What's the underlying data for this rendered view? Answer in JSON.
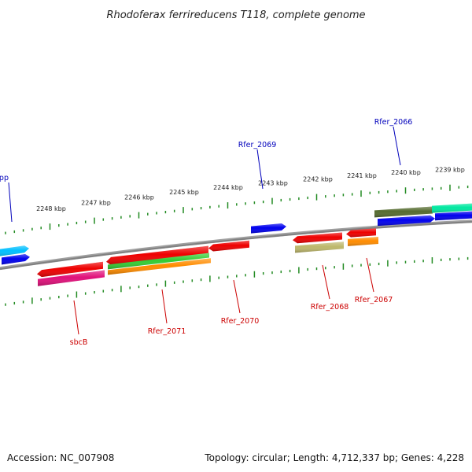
{
  "title": "Rhodoferax ferrireducens T118, complete genome",
  "accession": "Accession: NC_007908",
  "topology": "Topology: circular; Length: 4,712,337 bp; Genes: 4,228",
  "colors": {
    "forward_label": "#0000bb",
    "reverse_label": "#cc0000",
    "tick": "#228b22",
    "backbone": "#808080"
  },
  "scale_labels": [
    "2248 kbp",
    "2247 kbp",
    "2246 kbp",
    "2245 kbp",
    "2244 kbp",
    "2243 kbp",
    "2242 kbp",
    "2241 kbp",
    "2240 kbp",
    "2239 kbp"
  ],
  "labeled_genes": [
    {
      "name": "upp",
      "strand": "forward"
    },
    {
      "name": "Rfer_2069",
      "strand": "forward"
    },
    {
      "name": "Rfer_2066",
      "strand": "forward"
    },
    {
      "name": "sbcB",
      "strand": "reverse"
    },
    {
      "name": "Rfer_2071",
      "strand": "reverse"
    },
    {
      "name": "Rfer_2070",
      "strand": "reverse"
    },
    {
      "name": "Rfer_2068",
      "strand": "reverse"
    },
    {
      "name": "Rfer_2067",
      "strand": "reverse"
    }
  ],
  "features": [
    {
      "id": "forward-feature-1",
      "color": "#00bfff",
      "strand": "forward"
    },
    {
      "id": "forward-feature-2",
      "color": "#0000ee",
      "strand": "forward"
    },
    {
      "id": "forward-feature-3",
      "color": "#0000ee",
      "strand": "forward"
    },
    {
      "id": "forward-feature-4",
      "color": "#556b2f",
      "strand": "forward"
    },
    {
      "id": "forward-feature-5",
      "color": "#0000ee",
      "strand": "forward"
    },
    {
      "id": "forward-feature-6",
      "color": "#00e8a0",
      "strand": "forward"
    },
    {
      "id": "forward-feature-7",
      "color": "#0000ee",
      "strand": "forward"
    },
    {
      "id": "reverse-feature-1",
      "color": "#ee0000",
      "strand": "reverse"
    },
    {
      "id": "reverse-feature-2",
      "color": "#e0107a",
      "strand": "reverse"
    },
    {
      "id": "reverse-feature-3",
      "color": "#ee0000",
      "strand": "reverse"
    },
    {
      "id": "reverse-feature-4",
      "color": "#33cc33",
      "strand": "reverse"
    },
    {
      "id": "reverse-feature-5",
      "color": "#ff8c00",
      "strand": "reverse"
    },
    {
      "id": "reverse-feature-6",
      "color": "#ee0000",
      "strand": "reverse"
    },
    {
      "id": "reverse-feature-7",
      "color": "#ee0000",
      "strand": "reverse"
    },
    {
      "id": "reverse-feature-8",
      "color": "#bdb76b",
      "strand": "reverse"
    },
    {
      "id": "reverse-feature-9",
      "color": "#ee0000",
      "strand": "reverse"
    },
    {
      "id": "reverse-feature-10",
      "color": "#ff8c00",
      "strand": "reverse"
    }
  ]
}
